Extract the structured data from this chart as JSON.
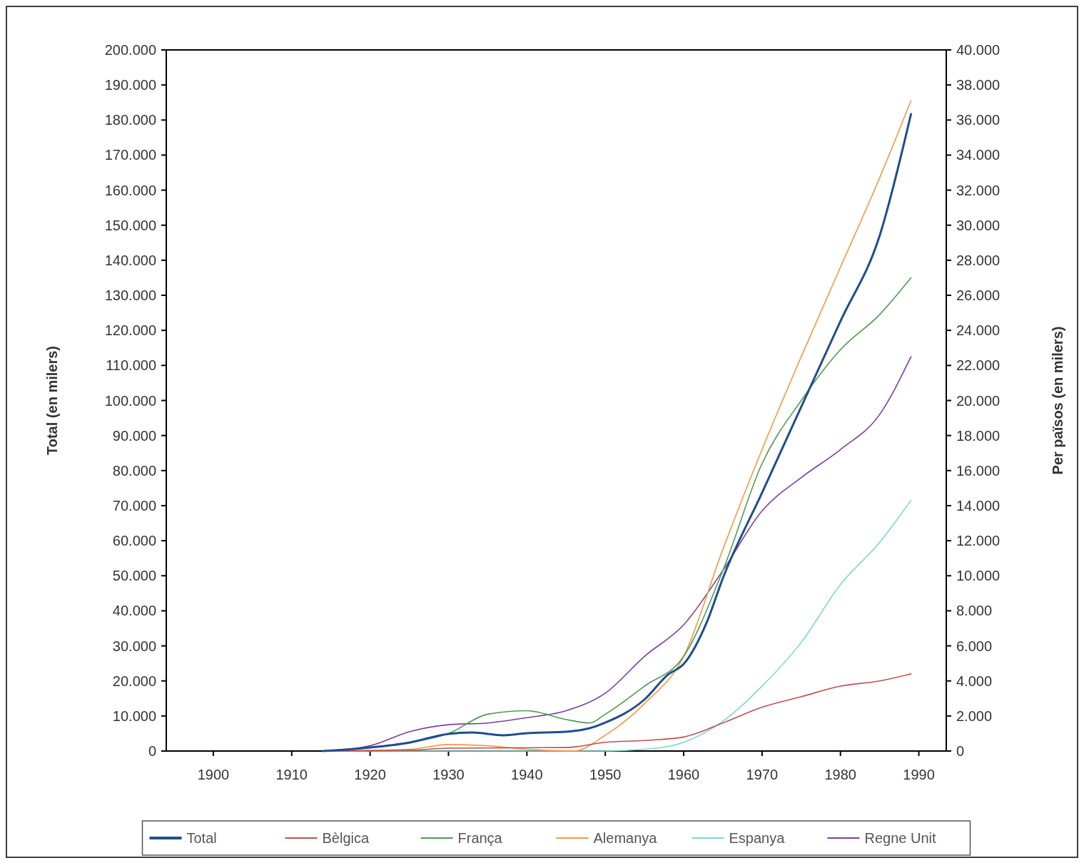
{
  "chart_data": {
    "type": "line",
    "xlabel": null,
    "ylabel": "Total (en milers)",
    "y2label": "Per països (en milers)",
    "xlim": [
      1894,
      1993.5
    ],
    "xticks": [
      1900,
      1910,
      1920,
      1930,
      1940,
      1950,
      1960,
      1970,
      1980,
      1990
    ],
    "ylim": [
      0,
      200000
    ],
    "yticks": [
      {
        "value": 0,
        "label": "0"
      },
      {
        "value": 10000,
        "label": "10.000"
      },
      {
        "value": 20000,
        "label": "20.000"
      },
      {
        "value": 30000,
        "label": "30.000"
      },
      {
        "value": 40000,
        "label": "40.000"
      },
      {
        "value": 50000,
        "label": "50.000"
      },
      {
        "value": 60000,
        "label": "60.000"
      },
      {
        "value": 70000,
        "label": "70.000"
      },
      {
        "value": 80000,
        "label": "80.000"
      },
      {
        "value": 90000,
        "label": "90.000"
      },
      {
        "value": 100000,
        "label": "100.000"
      },
      {
        "value": 110000,
        "label": "110.000"
      },
      {
        "value": 120000,
        "label": "120.000"
      },
      {
        "value": 130000,
        "label": "130.000"
      },
      {
        "value": 140000,
        "label": "140.000"
      },
      {
        "value": 150000,
        "label": "150.000"
      },
      {
        "value": 160000,
        "label": "160.000"
      },
      {
        "value": 170000,
        "label": "170.000"
      },
      {
        "value": 180000,
        "label": "180.000"
      },
      {
        "value": 190000,
        "label": "190.000"
      },
      {
        "value": 200000,
        "label": "200.000"
      }
    ],
    "y2lim": [
      0,
      40000
    ],
    "y2ticks": [
      {
        "value": 0,
        "label": "0"
      },
      {
        "value": 2000,
        "label": "2.000"
      },
      {
        "value": 4000,
        "label": "4.000"
      },
      {
        "value": 6000,
        "label": "6.000"
      },
      {
        "value": 8000,
        "label": "8.000"
      },
      {
        "value": 10000,
        "label": "10.000"
      },
      {
        "value": 12000,
        "label": "12.000"
      },
      {
        "value": 14000,
        "label": "14.000"
      },
      {
        "value": 16000,
        "label": "16.000"
      },
      {
        "value": 18000,
        "label": "18.000"
      },
      {
        "value": 20000,
        "label": "20.000"
      },
      {
        "value": 22000,
        "label": "22.000"
      },
      {
        "value": 24000,
        "label": "24.000"
      },
      {
        "value": 26000,
        "label": "26.000"
      },
      {
        "value": 28000,
        "label": "28.000"
      },
      {
        "value": 30000,
        "label": "30.000"
      },
      {
        "value": 32000,
        "label": "32.000"
      },
      {
        "value": 34000,
        "label": "34.000"
      },
      {
        "value": 36000,
        "label": "36.000"
      },
      {
        "value": 38000,
        "label": "38.000"
      },
      {
        "value": 40000,
        "label": "40.000"
      }
    ],
    "grid": false,
    "legend": "bottom",
    "marker": "none",
    "line_style": "solid",
    "series": [
      {
        "name": "Total",
        "color": "#1f4e8c",
        "x": [
          1914,
          1920,
          1925,
          1930,
          1933,
          1937,
          1940,
          1945,
          1948,
          1950,
          1955,
          1958,
          1960,
          1963,
          1965,
          1970,
          1975,
          1980,
          1985,
          1989
        ],
        "values": [
          0,
          1000,
          2400,
          4900,
          5300,
          4500,
          5100,
          5500,
          6500,
          8100,
          14700,
          21800,
          24800,
          37000,
          49300,
          73700,
          98200,
          122600,
          147000,
          181700
        ]
      },
      {
        "name": "Bèlgica",
        "color": "#c0504d",
        "axis": "y2",
        "x": [
          1914,
          1925,
          1930,
          1945,
          1950,
          1955,
          1960,
          1965,
          1970,
          1975,
          1980,
          1985,
          1989
        ],
        "values": [
          0,
          50,
          160,
          200,
          500,
          600,
          800,
          1600,
          2500,
          3100,
          3700,
          4000,
          4400
        ]
      },
      {
        "name": "França",
        "color": "#4f9a4f",
        "axis": "y2",
        "x": [
          1914,
          1920,
          1925,
          1930,
          1935,
          1940,
          1945,
          1948,
          1950,
          1955,
          1960,
          1965,
          1970,
          1975,
          1980,
          1985,
          1989
        ],
        "values": [
          0,
          200,
          500,
          1000,
          2100,
          2300,
          1800,
          1600,
          2100,
          3700,
          5400,
          10300,
          16400,
          20000,
          22900,
          24900,
          27000
        ]
      },
      {
        "name": "Alemanya",
        "color": "#f79646",
        "axis": "y2",
        "x": [
          1914,
          1925,
          1930,
          1935,
          1940,
          1946,
          1950,
          1955,
          1960,
          1965,
          1970,
          1975,
          1980,
          1985,
          1989
        ],
        "values": [
          0,
          100,
          370,
          300,
          100,
          0,
          900,
          2700,
          5400,
          11500,
          17200,
          22500,
          27600,
          32700,
          37100
        ]
      },
      {
        "name": "Espanya",
        "color": "#7fd6cf",
        "axis": "y2",
        "x": [
          1914,
          1950,
          1955,
          1960,
          1965,
          1970,
          1975,
          1980,
          1985,
          1989
        ],
        "values": [
          0,
          0,
          100,
          500,
          1700,
          3700,
          6200,
          9500,
          11900,
          14300
        ]
      },
      {
        "name": "Regne Unit",
        "color": "#7b3f9e",
        "axis": "y2",
        "x": [
          1914,
          1920,
          1925,
          1930,
          1935,
          1940,
          1945,
          1950,
          1955,
          1960,
          1965,
          1970,
          1975,
          1980,
          1985,
          1989
        ],
        "values": [
          0,
          300,
          1100,
          1500,
          1600,
          1900,
          2300,
          3300,
          5400,
          7200,
          10300,
          13700,
          15600,
          17200,
          19200,
          22500
        ]
      }
    ]
  }
}
